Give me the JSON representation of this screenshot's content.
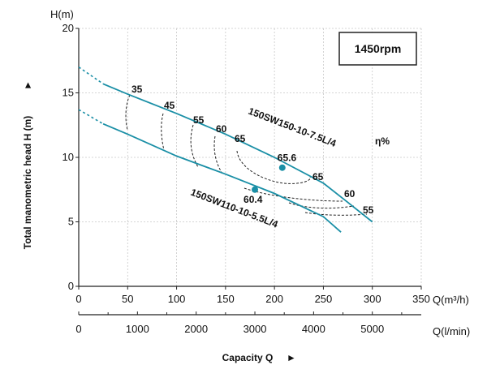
{
  "chart_data": {
    "type": "line",
    "title": "",
    "rpm_label": "1450rpm",
    "efficiency_label": "η%",
    "ylabel": "Total manometric head H (m)",
    "yunit_label": "H(m)",
    "xlabel": "Capacity Q",
    "x_top_unit": "Q(m³/h)",
    "x_bottom_unit": "Q(l/min)",
    "xlim": [
      0,
      350
    ],
    "ylim": [
      0,
      20
    ],
    "grid": true,
    "x_ticks": [
      0,
      50,
      100,
      150,
      200,
      250,
      300,
      350
    ],
    "y_ticks": [
      0,
      5,
      10,
      15,
      20
    ],
    "x_lpm_ticks": [
      0,
      1000,
      2000,
      3000,
      4000,
      5000
    ],
    "series": [
      {
        "name": "150SW150-10-7.5L/4",
        "color": "#1a8fa6",
        "points": [
          [
            25,
            15.7
          ],
          [
            50,
            14.9
          ],
          [
            100,
            13.4
          ],
          [
            150,
            11.8
          ],
          [
            200,
            10.0
          ],
          [
            250,
            8.0
          ],
          [
            275,
            6.5
          ],
          [
            300,
            5.0
          ]
        ],
        "dashed_extension": [
          [
            0,
            17.0
          ],
          [
            25,
            15.7
          ]
        ],
        "operating_point": {
          "x": 208,
          "y": 9.2,
          "label": "65.6"
        }
      },
      {
        "name": "150SW110-10-5.5L/4",
        "color": "#1a8fa6",
        "points": [
          [
            25,
            12.6
          ],
          [
            50,
            11.8
          ],
          [
            100,
            10.1
          ],
          [
            150,
            8.7
          ],
          [
            200,
            7.2
          ],
          [
            250,
            5.4
          ],
          [
            268,
            4.2
          ]
        ],
        "dashed_extension": [
          [
            0,
            13.7
          ],
          [
            25,
            12.6
          ]
        ],
        "operating_point": {
          "x": 180,
          "y": 7.5,
          "label": "60.4"
        }
      }
    ],
    "efficiency_labels": [
      "35",
      "45",
      "55",
      "60",
      "65",
      "65",
      "60",
      "55"
    ]
  }
}
